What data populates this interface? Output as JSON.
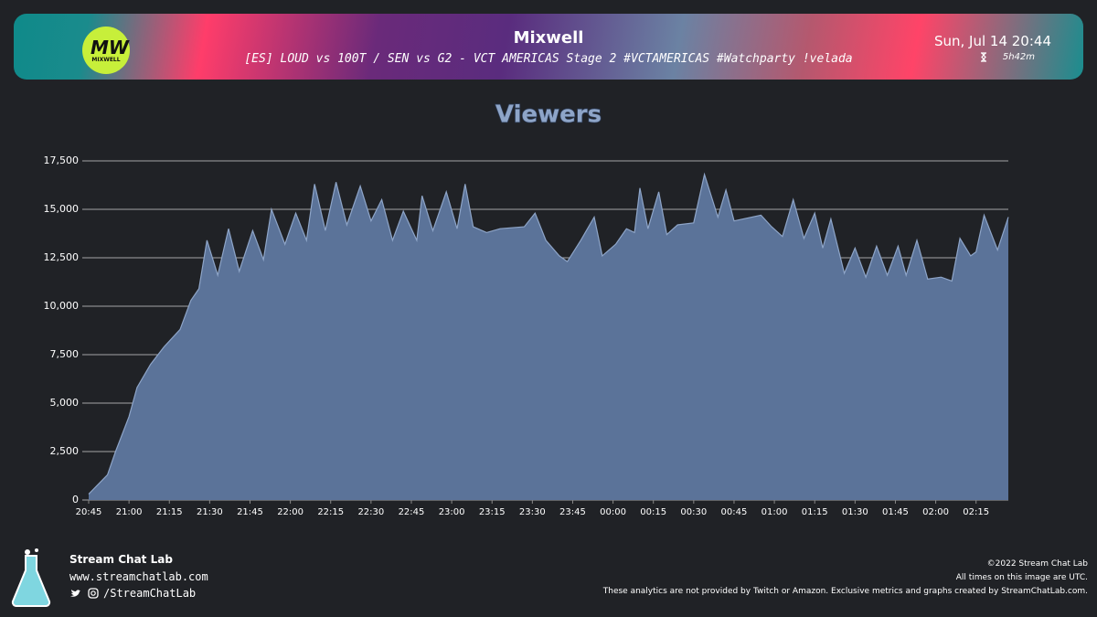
{
  "header": {
    "logo_text": "MIXWELL",
    "title": "Mixwell",
    "subtitle": "[ES] LOUD vs 100T / SEN vs G2 - VCT AMERICAS Stage 2 #VCTAMERICAS #Watchparty !velada",
    "date": "Sun, Jul 14 20:44",
    "duration": "5h42m"
  },
  "chart_data": {
    "type": "area",
    "title": "Viewers",
    "color": "#5b7399",
    "line_color": "#8ea5c8",
    "grid": true,
    "x": [
      "20:45",
      "20:52",
      "20:55",
      "21:00",
      "21:03",
      "21:08",
      "21:13",
      "21:19",
      "21:23",
      "21:26",
      "21:29",
      "21:33",
      "21:37",
      "21:41",
      "21:46",
      "21:50",
      "21:53",
      "21:58",
      "22:02",
      "22:06",
      "22:09",
      "22:13",
      "22:17",
      "22:21",
      "22:26",
      "22:30",
      "22:34",
      "22:38",
      "22:42",
      "22:47",
      "22:49",
      "22:53",
      "22:58",
      "23:02",
      "23:05",
      "23:08",
      "23:13",
      "23:18",
      "23:27",
      "23:31",
      "23:35",
      "23:40",
      "23:43",
      "23:48",
      "23:53",
      "23:56",
      "00:01",
      "00:05",
      "00:08",
      "00:10",
      "00:13",
      "00:17",
      "00:20",
      "00:24",
      "00:30",
      "00:34",
      "00:39",
      "00:42",
      "00:45",
      "00:55",
      "00:59",
      "01:03",
      "01:07",
      "01:11",
      "01:15",
      "01:18",
      "01:21",
      "01:26",
      "01:30",
      "01:34",
      "01:38",
      "01:42",
      "01:46",
      "01:49",
      "01:53",
      "01:57",
      "02:02",
      "02:06",
      "02:09",
      "02:13",
      "02:15",
      "02:18",
      "02:23",
      "02:27"
    ],
    "values": [
      300,
      1300,
      2500,
      4300,
      5800,
      7000,
      7900,
      8800,
      10300,
      10900,
      13400,
      11600,
      14000,
      11800,
      13900,
      12400,
      15000,
      13200,
      14800,
      13400,
      16300,
      13900,
      16400,
      14200,
      16200,
      14400,
      15500,
      13400,
      14900,
      13400,
      15700,
      13900,
      15900,
      14000,
      16300,
      14100,
      13800,
      14000,
      14100,
      14800,
      13400,
      12600,
      12300,
      13400,
      14600,
      12600,
      13200,
      14000,
      13800,
      16100,
      14000,
      15900,
      13700,
      14200,
      14300,
      16800,
      14600,
      16000,
      14400,
      14700,
      14100,
      13600,
      15500,
      13500,
      14800,
      13000,
      14500,
      11700,
      13000,
      11500,
      13100,
      11600,
      13100,
      11600,
      13400,
      11400,
      11500,
      11300,
      13500,
      12600,
      12800,
      14700,
      12900,
      14600
    ],
    "xlim": [
      "20:45",
      "02:27"
    ],
    "xticks": [
      "20:45",
      "21:00",
      "21:15",
      "21:30",
      "21:45",
      "22:00",
      "22:15",
      "22:30",
      "22:45",
      "23:00",
      "23:15",
      "23:30",
      "23:45",
      "00:00",
      "00:15",
      "00:30",
      "00:45",
      "01:00",
      "01:15",
      "01:30",
      "01:45",
      "02:00",
      "02:15"
    ],
    "ylim": [
      0,
      17500
    ],
    "yticks": [
      0,
      {
        "value": 2500,
        "label": "2,500"
      },
      {
        "value": 5000,
        "label": "5,000"
      },
      {
        "value": 7500,
        "label": "7,500"
      },
      {
        "value": 10000,
        "label": "10,000"
      },
      {
        "value": 12500,
        "label": "12,500"
      },
      {
        "value": 15000,
        "label": "15,000"
      },
      {
        "value": 17500,
        "label": "17,500"
      }
    ]
  },
  "footer": {
    "brand": "Stream Chat Lab",
    "url": "www.streamchatlab.com",
    "handle": "/StreamChatLab",
    "copyright": "©2022 Stream Chat Lab",
    "timezone_note": "All times on this image are UTC.",
    "disclaimer": "These analytics are not provided by Twitch or Amazon. Exclusive metrics and graphs created by StreamChatLab.com."
  }
}
